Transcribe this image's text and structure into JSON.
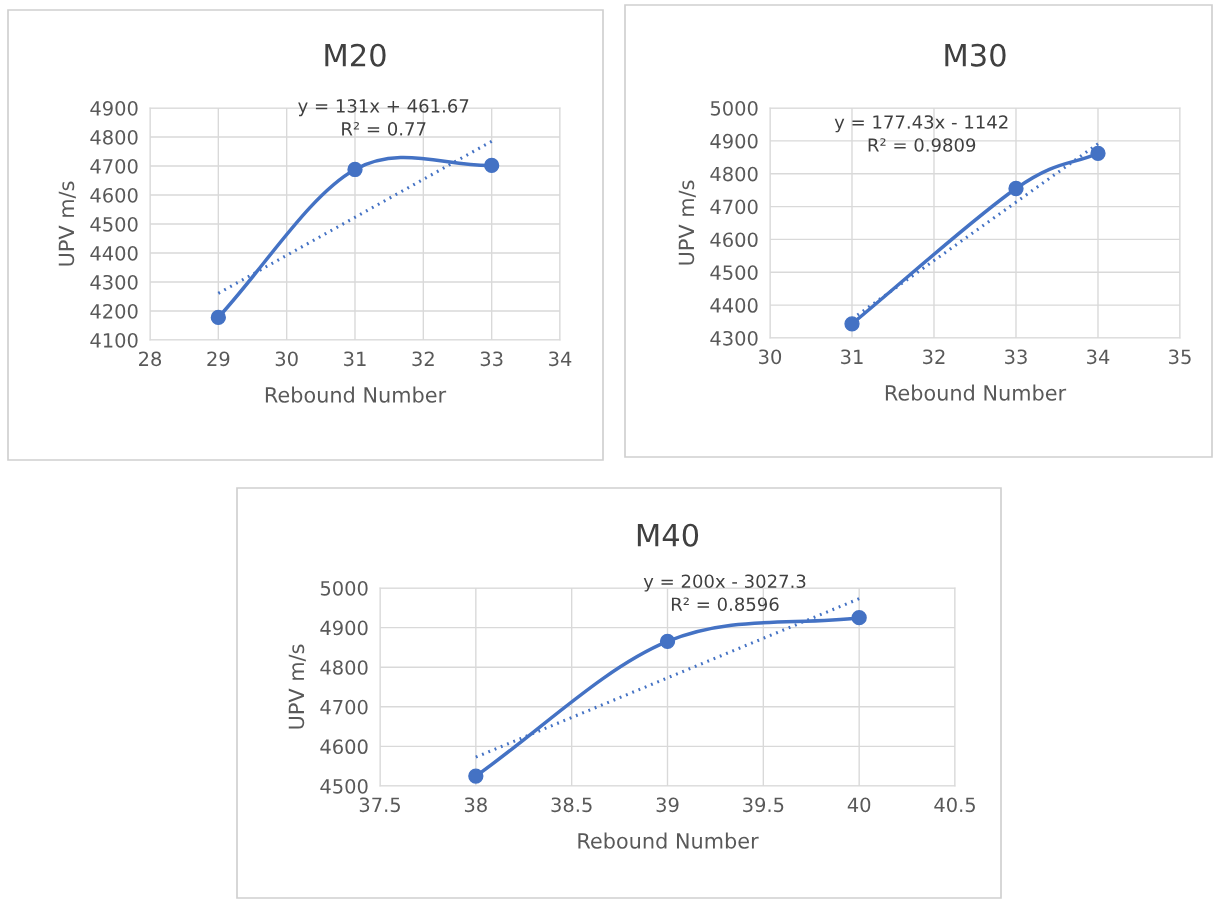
{
  "chart_data": [
    {
      "type": "line",
      "title": "M20",
      "xlabel": "Rebound Number",
      "ylabel": "UPV m/s",
      "xlim": [
        28,
        34
      ],
      "xticks": [
        28,
        29,
        30,
        31,
        32,
        33,
        34
      ],
      "ylim": [
        4100,
        4900
      ],
      "yticks": [
        4100,
        4200,
        4300,
        4400,
        4500,
        4600,
        4700,
        4800,
        4900
      ],
      "grid": true,
      "legend": false,
      "annotations": [
        "y = 131x + 461.67",
        "R² = 0.77"
      ],
      "series": [
        {
          "color": "#4472c4",
          "marker": "circle",
          "line_style": "solid",
          "x": [
            29,
            31,
            33
          ],
          "values": [
            4178,
            4688,
            4702
          ]
        },
        {
          "color": "#4472c4",
          "marker": "none",
          "line_style": "dotted",
          "x": [
            29,
            33
          ],
          "values": [
            4261,
            4785
          ]
        }
      ]
    },
    {
      "type": "line",
      "title": "M30",
      "xlabel": "Rebound Number",
      "ylabel": "UPV m/s",
      "xlim": [
        30,
        35
      ],
      "xticks": [
        30,
        31,
        32,
        33,
        34,
        35
      ],
      "ylim": [
        4300,
        5000
      ],
      "yticks": [
        4300,
        4400,
        4500,
        4600,
        4700,
        4800,
        4900,
        5000
      ],
      "grid": true,
      "legend": false,
      "annotations": [
        "y = 177.43x - 1142",
        "R² = 0.9809"
      ],
      "series": [
        {
          "color": "#4472c4",
          "marker": "circle",
          "line_style": "solid",
          "x": [
            31,
            33,
            34
          ],
          "values": [
            4343,
            4755,
            4862
          ]
        },
        {
          "color": "#4472c4",
          "marker": "none",
          "line_style": "dotted",
          "x": [
            31,
            34
          ],
          "values": [
            4358,
            4891
          ]
        }
      ]
    },
    {
      "type": "line",
      "title": "M40",
      "xlabel": "Rebound Number",
      "ylabel": "UPV m/s",
      "xlim": [
        37.5,
        40.5
      ],
      "xticks": [
        37.5,
        38,
        38.5,
        39,
        39.5,
        40,
        40.5
      ],
      "ylim": [
        4500,
        5000
      ],
      "yticks": [
        4500,
        4600,
        4700,
        4800,
        4900,
        5000
      ],
      "grid": true,
      "legend": false,
      "annotations": [
        "y = 200x - 3027.3",
        "R² = 0.8596"
      ],
      "series": [
        {
          "color": "#4472c4",
          "marker": "circle",
          "line_style": "solid",
          "x": [
            38,
            39,
            40
          ],
          "values": [
            4525,
            4865,
            4925
          ]
        },
        {
          "color": "#4472c4",
          "marker": "none",
          "line_style": "dotted",
          "x": [
            38,
            40
          ],
          "values": [
            4573,
            4973
          ]
        }
      ]
    }
  ]
}
